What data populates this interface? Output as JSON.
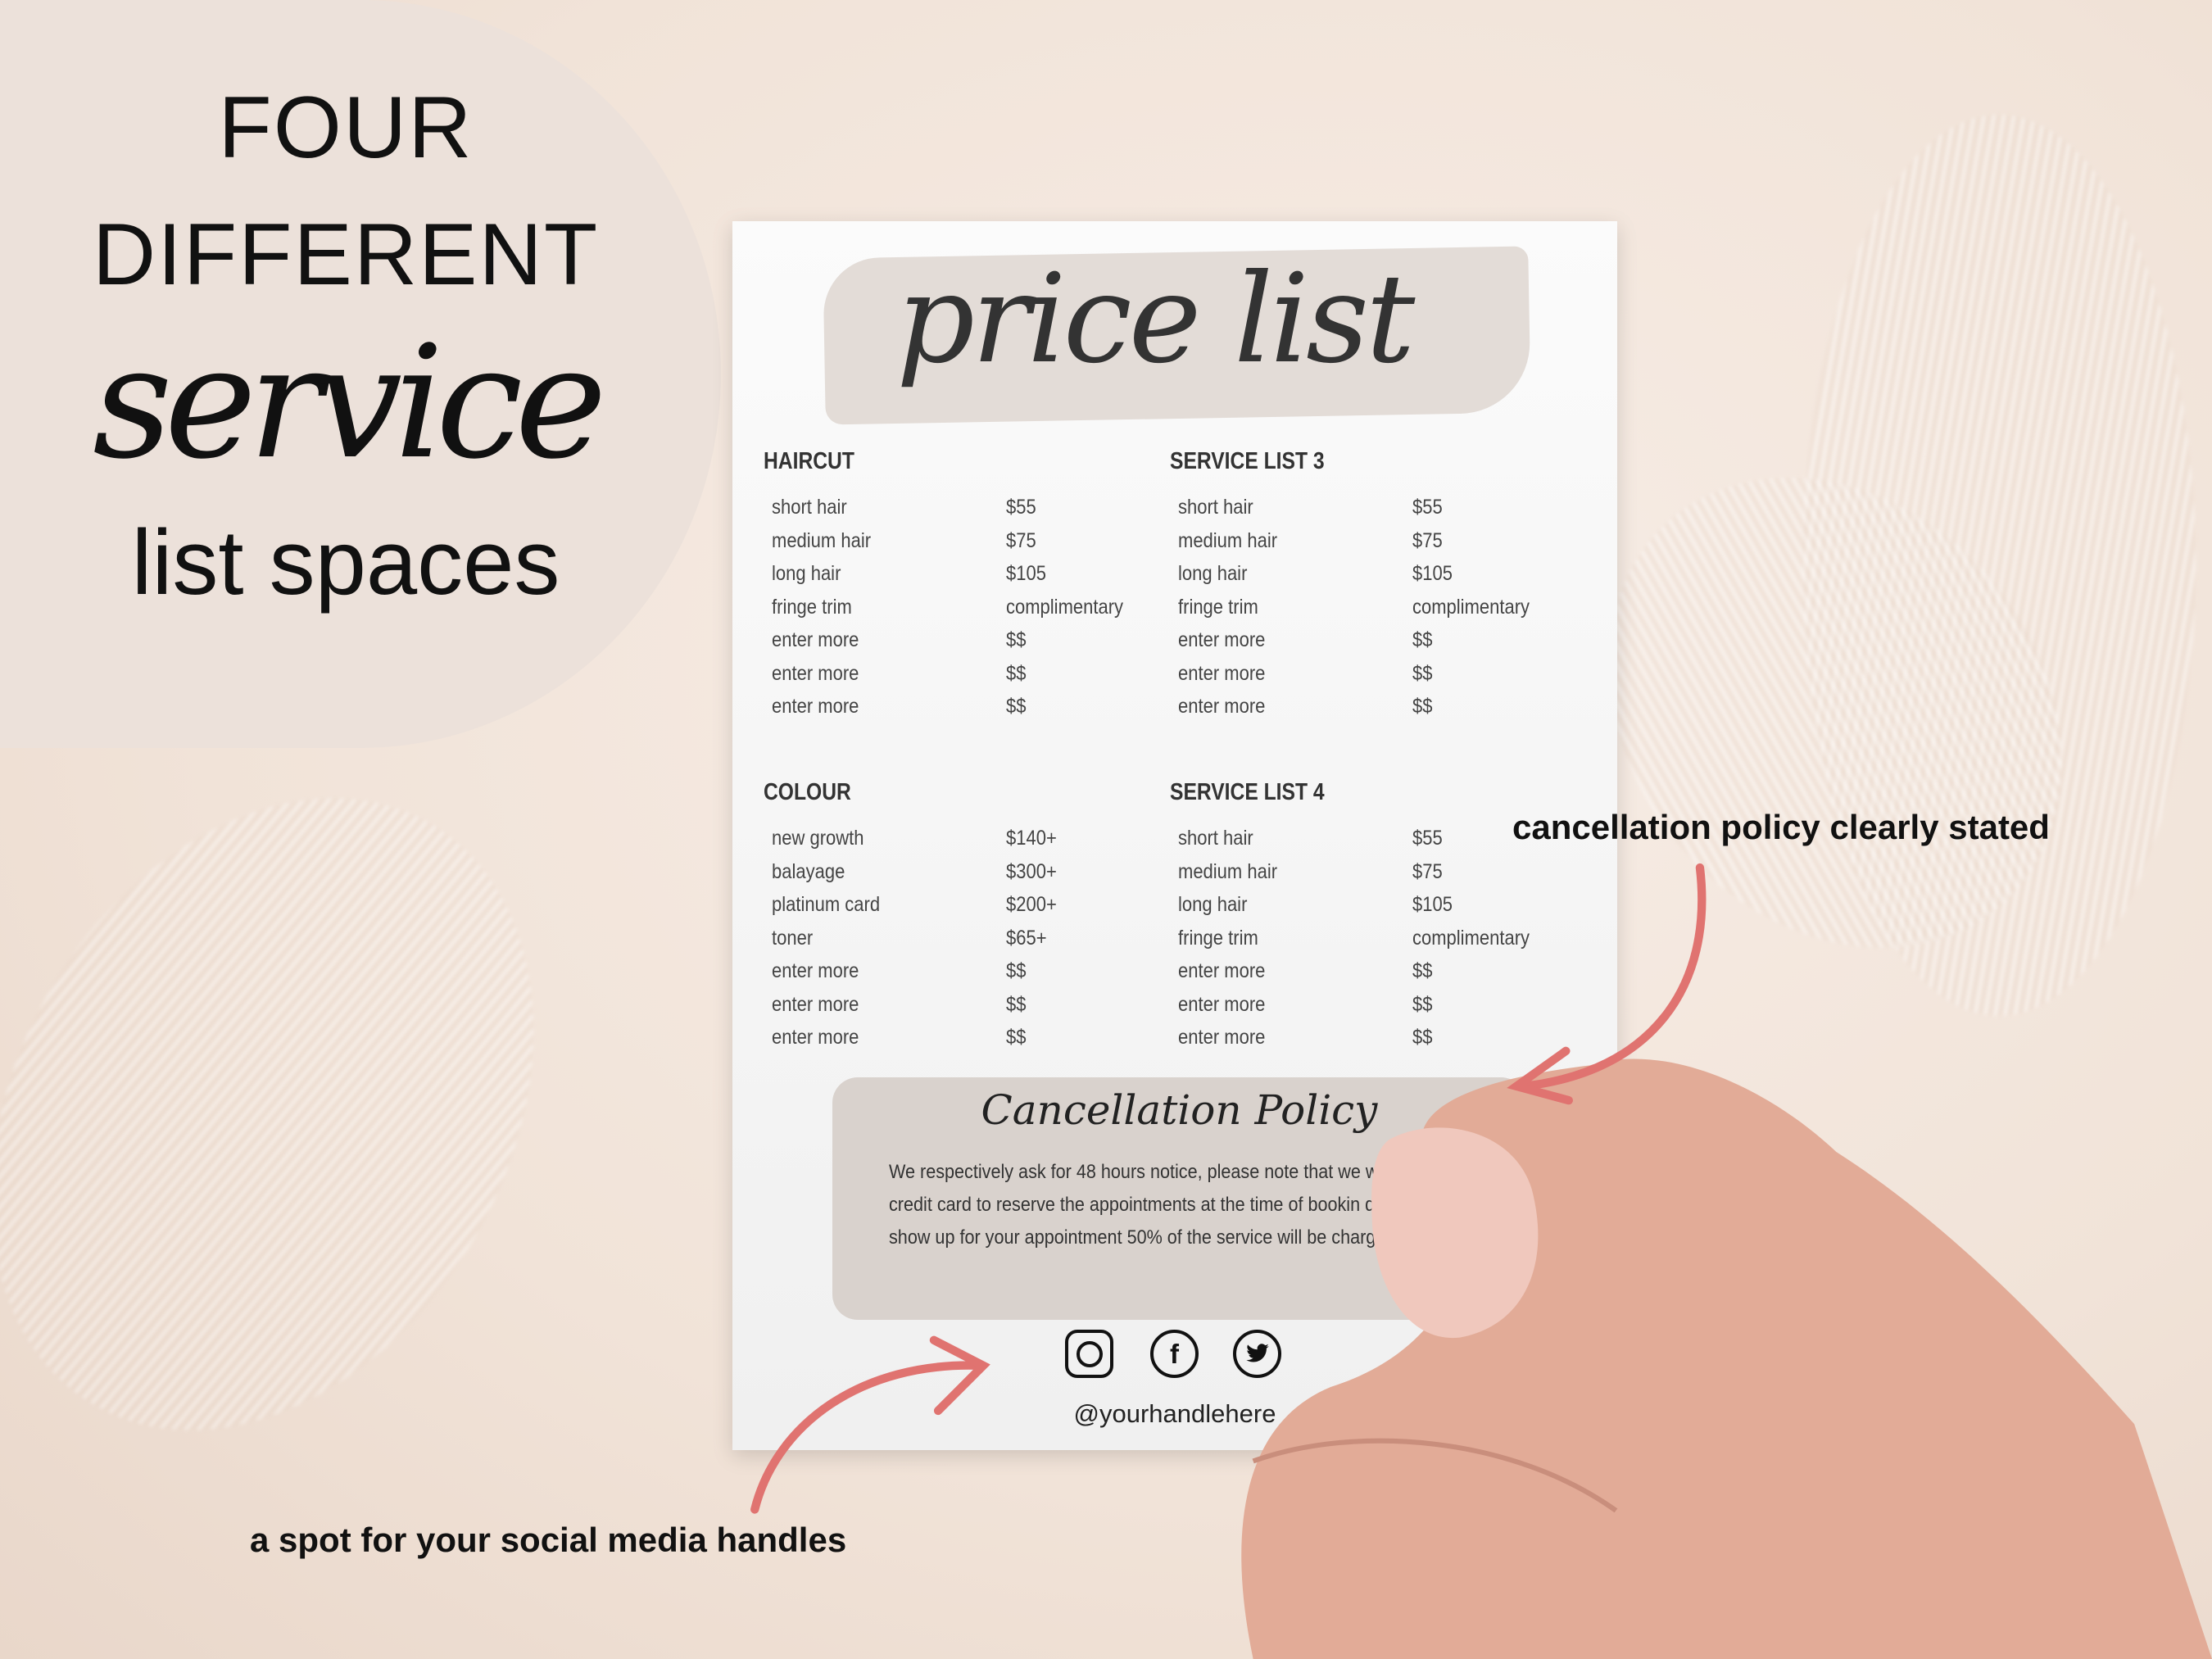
{
  "headline": {
    "line1": "FOUR",
    "line2": "DIFFERENT",
    "line3": "service",
    "line4": "list spaces"
  },
  "card": {
    "title": "price list",
    "sections": [
      {
        "title": "HAIRCUT",
        "items": [
          [
            "short hair",
            "$55"
          ],
          [
            "medium hair",
            "$75"
          ],
          [
            "long hair",
            "$105"
          ],
          [
            "fringe trim",
            "complimentary"
          ],
          [
            "enter more",
            "$$"
          ],
          [
            "enter more",
            "$$"
          ],
          [
            "enter more",
            "$$"
          ]
        ]
      },
      {
        "title": "SERVICE LIST 3",
        "items": [
          [
            "short hair",
            "$55"
          ],
          [
            "medium hair",
            "$75"
          ],
          [
            "long hair",
            "$105"
          ],
          [
            "fringe trim",
            "complimentary"
          ],
          [
            "enter more",
            "$$"
          ],
          [
            "enter more",
            "$$"
          ],
          [
            "enter more",
            "$$"
          ]
        ]
      },
      {
        "title": "COLOUR",
        "items": [
          [
            "new growth",
            "$140+"
          ],
          [
            "balayage",
            "$300+"
          ],
          [
            "platinum card",
            "$200+"
          ],
          [
            "toner",
            "$65+"
          ],
          [
            "enter more",
            "$$"
          ],
          [
            "enter more",
            "$$"
          ],
          [
            "enter more",
            "$$"
          ]
        ]
      },
      {
        "title": "SERVICE LIST 4",
        "items": [
          [
            "short hair",
            "$55"
          ],
          [
            "medium hair",
            "$75"
          ],
          [
            "long hair",
            "$105"
          ],
          [
            "fringe trim",
            "complimentary"
          ],
          [
            "enter more",
            "$$"
          ],
          [
            "enter more",
            "$$"
          ],
          [
            "enter more",
            "$$"
          ]
        ]
      }
    ],
    "policy": {
      "title": "Cancellation Policy",
      "text": "We respectively ask for 48 hours notice, please note that we will a credit card to reserve the appointments at the time of bookin do not show up for your appointment 50% of the service will be charged."
    },
    "social": {
      "icons": [
        "instagram-icon",
        "facebook-icon",
        "twitter-icon"
      ],
      "handle": "@yourhandlehere"
    }
  },
  "annotations": {
    "cancellation": "cancellation policy clearly stated",
    "social": "a spot for your social media handles"
  },
  "colors": {
    "arrow": "#e07370",
    "policy_bg": "#d9d2cd",
    "circle": "#ece1da"
  }
}
